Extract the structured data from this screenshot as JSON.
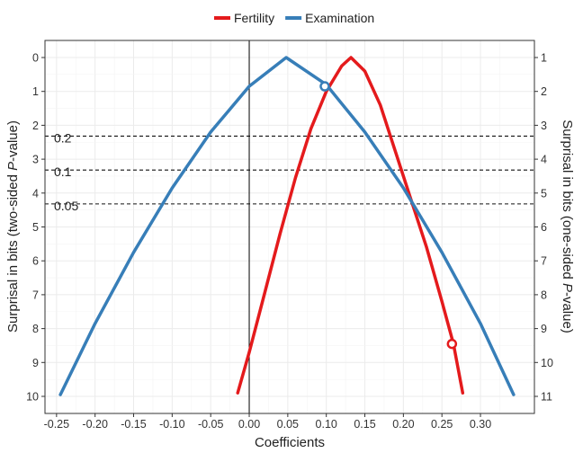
{
  "chart_data": {
    "type": "line",
    "xlabel": "Coefficients",
    "ylabel_left": "Surprisal in bits (two-sided P-value)",
    "ylabel_right": "Surprisal in bits (one-sided P-value)",
    "xlim": [
      -0.265,
      0.37
    ],
    "ylim": [
      0,
      10
    ],
    "x_ticks": [
      -0.25,
      -0.2,
      -0.15,
      -0.1,
      -0.05,
      0.0,
      0.05,
      0.1,
      0.15,
      0.2,
      0.25,
      0.3
    ],
    "x_tick_labels": [
      "-0.25",
      "-0.20",
      "-0.15",
      "-0.10",
      "-0.05",
      "0.00",
      "0.05",
      "0.10",
      "0.15",
      "0.20",
      "0.25",
      "0.30"
    ],
    "left_ticks": [
      0,
      1,
      2,
      3,
      4,
      5,
      6,
      7,
      8,
      9,
      10
    ],
    "left_tick_labels": [
      "0",
      "1",
      "2",
      "3",
      "4",
      "5",
      "6",
      "7",
      "8",
      "9",
      "10"
    ],
    "right_tick_labels": [
      "1",
      "2",
      "3",
      "4",
      "5",
      "6",
      "7",
      "8",
      "9",
      "10",
      "11"
    ],
    "grid": true,
    "legend_position": "top",
    "vline_x": 0,
    "reference_lines": [
      {
        "label": "0.2",
        "y": 2.32
      },
      {
        "label": "0.1",
        "y": 3.32
      },
      {
        "label": "0.05",
        "y": 4.32
      }
    ],
    "series": [
      {
        "name": "Fertility",
        "color": "#E41A1C",
        "estimate": 0.132,
        "x": [
          -0.015,
          0.0,
          0.02,
          0.04,
          0.06,
          0.08,
          0.1,
          0.12,
          0.132,
          0.15,
          0.17,
          0.19,
          0.21,
          0.23,
          0.25,
          0.265,
          0.277
        ],
        "y": [
          9.9,
          8.7,
          6.95,
          5.2,
          3.55,
          2.1,
          1.0,
          0.25,
          0.0,
          0.4,
          1.4,
          2.8,
          4.2,
          5.6,
          7.2,
          8.45,
          9.9
        ],
        "marker": {
          "x": 0.263,
          "y": 8.45
        }
      },
      {
        "name": "Examination",
        "color": "#377EB8",
        "estimate": 0.048,
        "x": [
          -0.245,
          -0.2,
          -0.15,
          -0.1,
          -0.05,
          0.0,
          0.048,
          0.1,
          0.15,
          0.2,
          0.25,
          0.3,
          0.343
        ],
        "y": [
          9.95,
          7.85,
          5.75,
          3.85,
          2.2,
          0.85,
          0.0,
          0.8,
          2.2,
          3.85,
          5.75,
          7.85,
          9.95
        ],
        "marker": {
          "x": 0.098,
          "y": 0.85
        }
      }
    ]
  }
}
